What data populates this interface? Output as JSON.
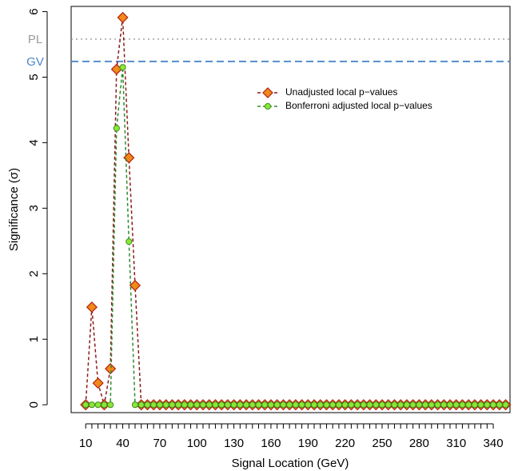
{
  "chart_data": {
    "type": "line",
    "xlabel": "Signal Location (GeV)",
    "ylabel": "Significance (σ)",
    "xlim": [
      0,
      350
    ],
    "ylim": [
      -0.12,
      6.08
    ],
    "x_ticks": [
      10,
      40,
      70,
      100,
      130,
      160,
      190,
      220,
      250,
      280,
      310,
      340
    ],
    "x_minor_step": 5,
    "y_ticks": [
      0,
      1,
      2,
      3,
      4,
      5,
      6
    ],
    "grid": false,
    "legend_position": "top-right",
    "reference_lines": [
      {
        "label": "PL",
        "value": 5.58,
        "color": "#9a9a9a",
        "style": "dotted"
      },
      {
        "label": "GV",
        "value": 5.24,
        "color": "#4a86c8",
        "style": "dashed"
      }
    ],
    "series": [
      {
        "name": "Unadjusted local p−values",
        "marker": "diamond",
        "fill": "#f08a1a",
        "edge": "#b32010",
        "line_color": "#8b1a1a",
        "points": [
          [
            10,
            0
          ],
          [
            15,
            1.49
          ],
          [
            20,
            0.33
          ],
          [
            25,
            0
          ],
          [
            30,
            0.55
          ],
          [
            35,
            5.12
          ],
          [
            40,
            5.91
          ],
          [
            45,
            3.77
          ],
          [
            50,
            1.82
          ],
          [
            55,
            0
          ],
          [
            60,
            0
          ],
          [
            65,
            0
          ],
          [
            70,
            0
          ],
          [
            75,
            0
          ],
          [
            80,
            0
          ],
          [
            85,
            0
          ],
          [
            90,
            0
          ],
          [
            95,
            0
          ],
          [
            100,
            0
          ],
          [
            105,
            0
          ],
          [
            110,
            0
          ],
          [
            115,
            0
          ],
          [
            120,
            0
          ],
          [
            125,
            0
          ],
          [
            130,
            0
          ],
          [
            135,
            0
          ],
          [
            140,
            0
          ],
          [
            145,
            0
          ],
          [
            150,
            0
          ],
          [
            155,
            0
          ],
          [
            160,
            0
          ],
          [
            165,
            0
          ],
          [
            170,
            0
          ],
          [
            175,
            0
          ],
          [
            180,
            0
          ],
          [
            185,
            0
          ],
          [
            190,
            0
          ],
          [
            195,
            0
          ],
          [
            200,
            0
          ],
          [
            205,
            0
          ],
          [
            210,
            0
          ],
          [
            215,
            0
          ],
          [
            220,
            0
          ],
          [
            225,
            0
          ],
          [
            230,
            0
          ],
          [
            235,
            0
          ],
          [
            240,
            0
          ],
          [
            245,
            0
          ],
          [
            250,
            0
          ],
          [
            255,
            0
          ],
          [
            260,
            0
          ],
          [
            265,
            0
          ],
          [
            270,
            0
          ],
          [
            275,
            0
          ],
          [
            280,
            0
          ],
          [
            285,
            0
          ],
          [
            290,
            0
          ],
          [
            295,
            0
          ],
          [
            300,
            0
          ],
          [
            305,
            0
          ],
          [
            310,
            0
          ],
          [
            315,
            0
          ],
          [
            320,
            0
          ],
          [
            325,
            0
          ],
          [
            330,
            0
          ],
          [
            335,
            0
          ],
          [
            340,
            0
          ],
          [
            345,
            0
          ],
          [
            350,
            0
          ]
        ]
      },
      {
        "name": "Bonferroni adjusted local p−values",
        "marker": "circle",
        "fill": "#8ce63a",
        "edge": "#3f8f1a",
        "line_color": "#2e8b2e",
        "points": [
          [
            10,
            0
          ],
          [
            15,
            0
          ],
          [
            20,
            0
          ],
          [
            25,
            0
          ],
          [
            30,
            0
          ],
          [
            35,
            4.22
          ],
          [
            40,
            5.15
          ],
          [
            45,
            2.49
          ],
          [
            50,
            0
          ],
          [
            55,
            0
          ],
          [
            60,
            0
          ],
          [
            65,
            0
          ],
          [
            70,
            0
          ],
          [
            75,
            0
          ],
          [
            80,
            0
          ],
          [
            85,
            0
          ],
          [
            90,
            0
          ],
          [
            95,
            0
          ],
          [
            100,
            0
          ],
          [
            105,
            0
          ],
          [
            110,
            0
          ],
          [
            115,
            0
          ],
          [
            120,
            0
          ],
          [
            125,
            0
          ],
          [
            130,
            0
          ],
          [
            135,
            0
          ],
          [
            140,
            0
          ],
          [
            145,
            0
          ],
          [
            150,
            0
          ],
          [
            155,
            0
          ],
          [
            160,
            0
          ],
          [
            165,
            0
          ],
          [
            170,
            0
          ],
          [
            175,
            0
          ],
          [
            180,
            0
          ],
          [
            185,
            0
          ],
          [
            190,
            0
          ],
          [
            195,
            0
          ],
          [
            200,
            0
          ],
          [
            205,
            0
          ],
          [
            210,
            0
          ],
          [
            215,
            0
          ],
          [
            220,
            0
          ],
          [
            225,
            0
          ],
          [
            230,
            0
          ],
          [
            235,
            0
          ],
          [
            240,
            0
          ],
          [
            245,
            0
          ],
          [
            250,
            0
          ],
          [
            255,
            0
          ],
          [
            260,
            0
          ],
          [
            265,
            0
          ],
          [
            270,
            0
          ],
          [
            275,
            0
          ],
          [
            280,
            0
          ],
          [
            285,
            0
          ],
          [
            290,
            0
          ],
          [
            295,
            0
          ],
          [
            300,
            0
          ],
          [
            305,
            0
          ],
          [
            310,
            0
          ],
          [
            315,
            0
          ],
          [
            320,
            0
          ],
          [
            325,
            0
          ],
          [
            330,
            0
          ],
          [
            335,
            0
          ],
          [
            340,
            0
          ],
          [
            345,
            0
          ],
          [
            350,
            0
          ]
        ]
      }
    ]
  }
}
